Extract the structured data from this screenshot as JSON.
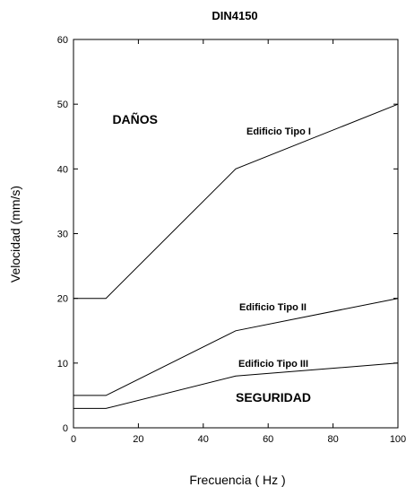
{
  "chart_data": {
    "type": "line",
    "title": "DIN4150",
    "xlabel": "Frecuencia ( Hz )",
    "ylabel": "Velocidad (mm/s)",
    "xlim": [
      0,
      100
    ],
    "ylim": [
      0,
      60
    ],
    "xticks": [
      0,
      20,
      40,
      60,
      80,
      100
    ],
    "yticks": [
      0,
      10,
      20,
      30,
      40,
      50,
      60
    ],
    "grid": false,
    "series": [
      {
        "name": "Edificio Tipo I",
        "x": [
          0,
          10,
          50,
          100
        ],
        "y": [
          20,
          20,
          40,
          50
        ]
      },
      {
        "name": "Edificio Tipo II",
        "x": [
          0,
          10,
          50,
          100
        ],
        "y": [
          5,
          5,
          15,
          20
        ]
      },
      {
        "name": "Edificio Tipo III",
        "x": [
          0,
          10,
          50,
          100
        ],
        "y": [
          3,
          3,
          8,
          10
        ]
      }
    ],
    "annotations": [
      {
        "text": "DAÑOS",
        "x": 12,
        "y": 47
      },
      {
        "text": "SEGURIDAD",
        "x": 50,
        "y": 4
      }
    ]
  }
}
